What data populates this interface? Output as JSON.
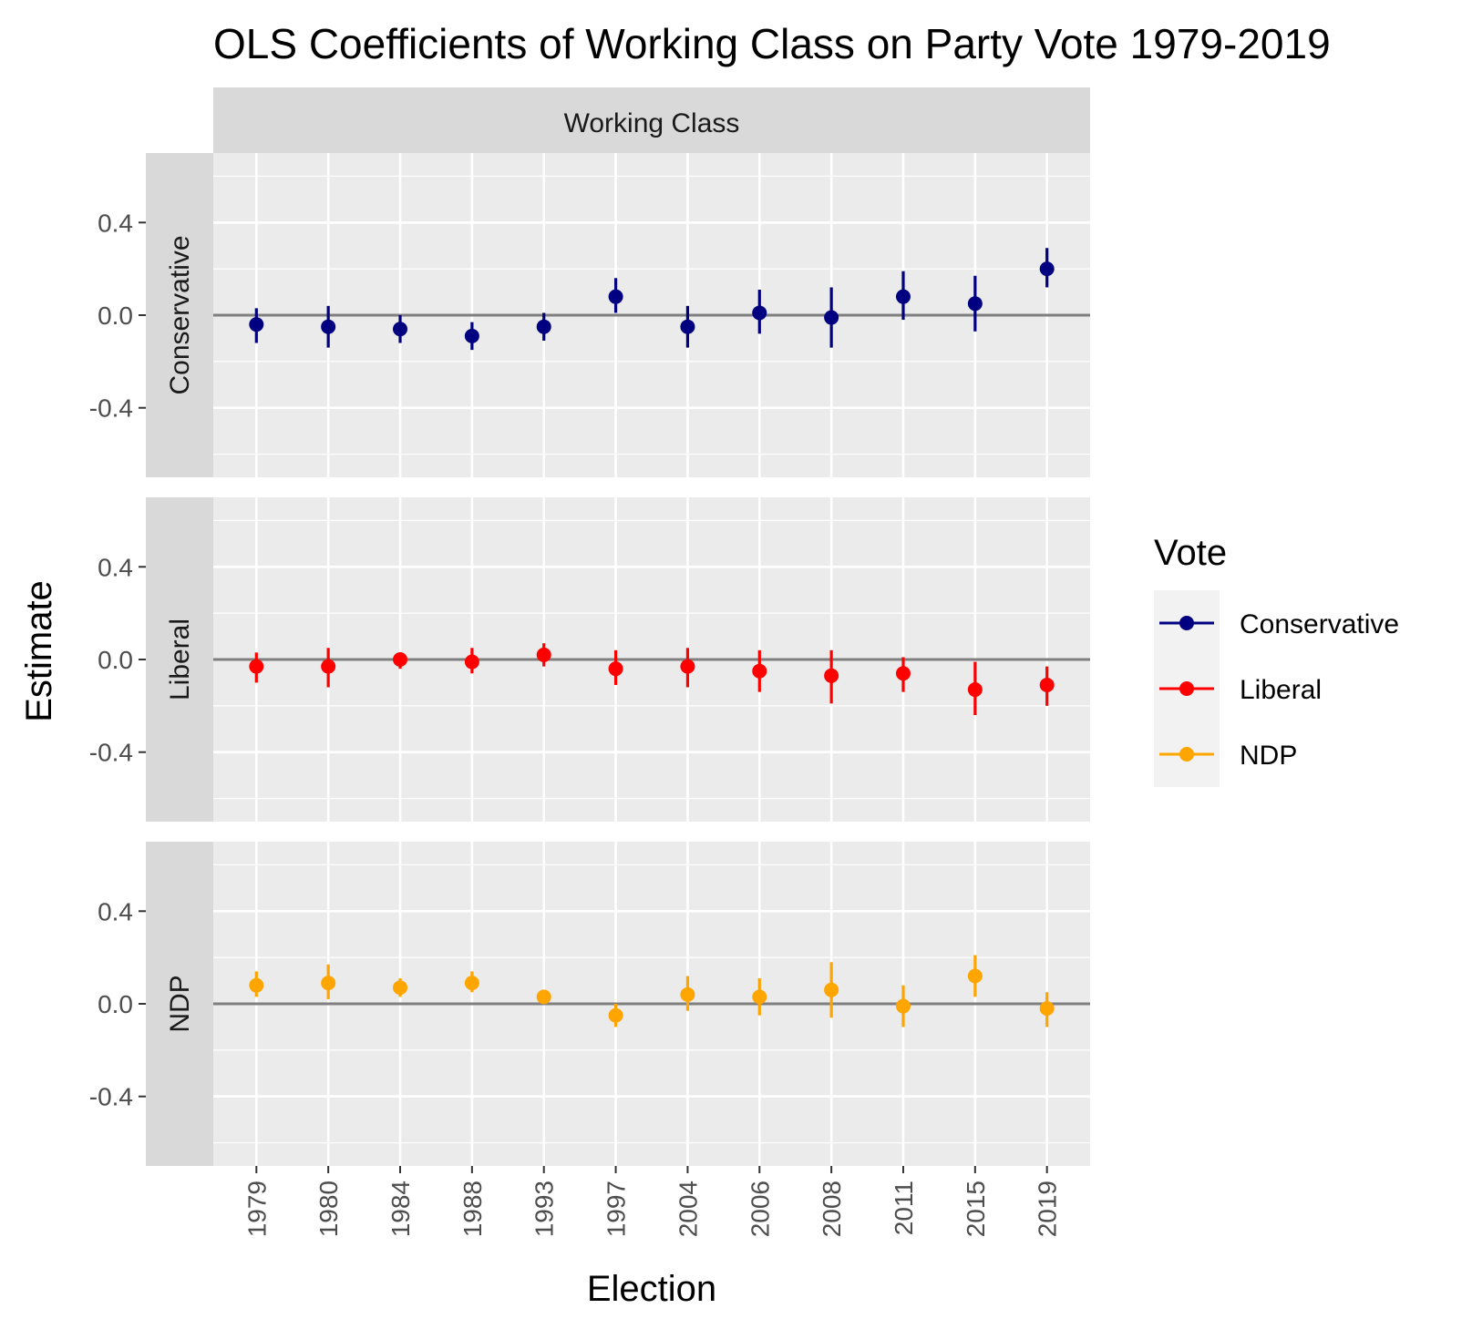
{
  "chart_data": {
    "type": "scatter",
    "title": "OLS Coefficients of Working Class on Party Vote 1979-2019",
    "column_strip": "Working Class",
    "xlabel": "Election",
    "ylabel": "Estimate",
    "categories": [
      "1979",
      "1980",
      "1984",
      "1988",
      "1993",
      "1997",
      "2004",
      "2006",
      "2008",
      "2011",
      "2015",
      "2019"
    ],
    "ylim": [
      -0.7,
      0.7
    ],
    "yticks": [
      -0.4,
      0.0,
      0.4
    ],
    "ytick_labels": [
      "-0.4",
      "0.0",
      "0.4"
    ],
    "reference_line": 0,
    "grid": true,
    "legend": {
      "title": "Vote",
      "placement": "right",
      "entries": [
        "Conservative",
        "Liberal",
        "NDP"
      ]
    },
    "series": [
      {
        "name": "Conservative",
        "color": "#000080",
        "values": [
          -0.04,
          -0.05,
          -0.06,
          -0.09,
          -0.05,
          0.08,
          -0.05,
          0.01,
          -0.01,
          0.08,
          0.05,
          0.2
        ],
        "lower": [
          -0.12,
          -0.14,
          -0.12,
          -0.15,
          -0.11,
          0.01,
          -0.14,
          -0.08,
          -0.14,
          -0.02,
          -0.07,
          0.12
        ],
        "upper": [
          0.03,
          0.04,
          0.0,
          -0.03,
          0.01,
          0.16,
          0.04,
          0.11,
          0.12,
          0.19,
          0.17,
          0.29
        ]
      },
      {
        "name": "Liberal",
        "color": "#ff0000",
        "values": [
          -0.03,
          -0.03,
          0.0,
          -0.01,
          0.02,
          -0.04,
          -0.03,
          -0.05,
          -0.07,
          -0.06,
          -0.13,
          -0.11
        ],
        "lower": [
          -0.1,
          -0.12,
          -0.04,
          -0.06,
          -0.03,
          -0.11,
          -0.12,
          -0.14,
          -0.19,
          -0.14,
          -0.24,
          -0.2
        ],
        "upper": [
          0.03,
          0.05,
          0.03,
          0.05,
          0.07,
          0.04,
          0.05,
          0.04,
          0.04,
          0.01,
          -0.01,
          -0.03
        ]
      },
      {
        "name": "NDP",
        "color": "#ffa500",
        "values": [
          0.08,
          0.09,
          0.07,
          0.09,
          0.03,
          -0.05,
          0.04,
          0.03,
          0.06,
          -0.01,
          0.12,
          -0.02
        ],
        "lower": [
          0.03,
          0.02,
          0.03,
          0.05,
          0.02,
          -0.1,
          -0.03,
          -0.05,
          -0.06,
          -0.1,
          0.03,
          -0.1
        ],
        "upper": [
          0.14,
          0.17,
          0.11,
          0.14,
          0.05,
          0.0,
          0.12,
          0.11,
          0.18,
          0.08,
          0.21,
          0.05
        ]
      }
    ]
  }
}
